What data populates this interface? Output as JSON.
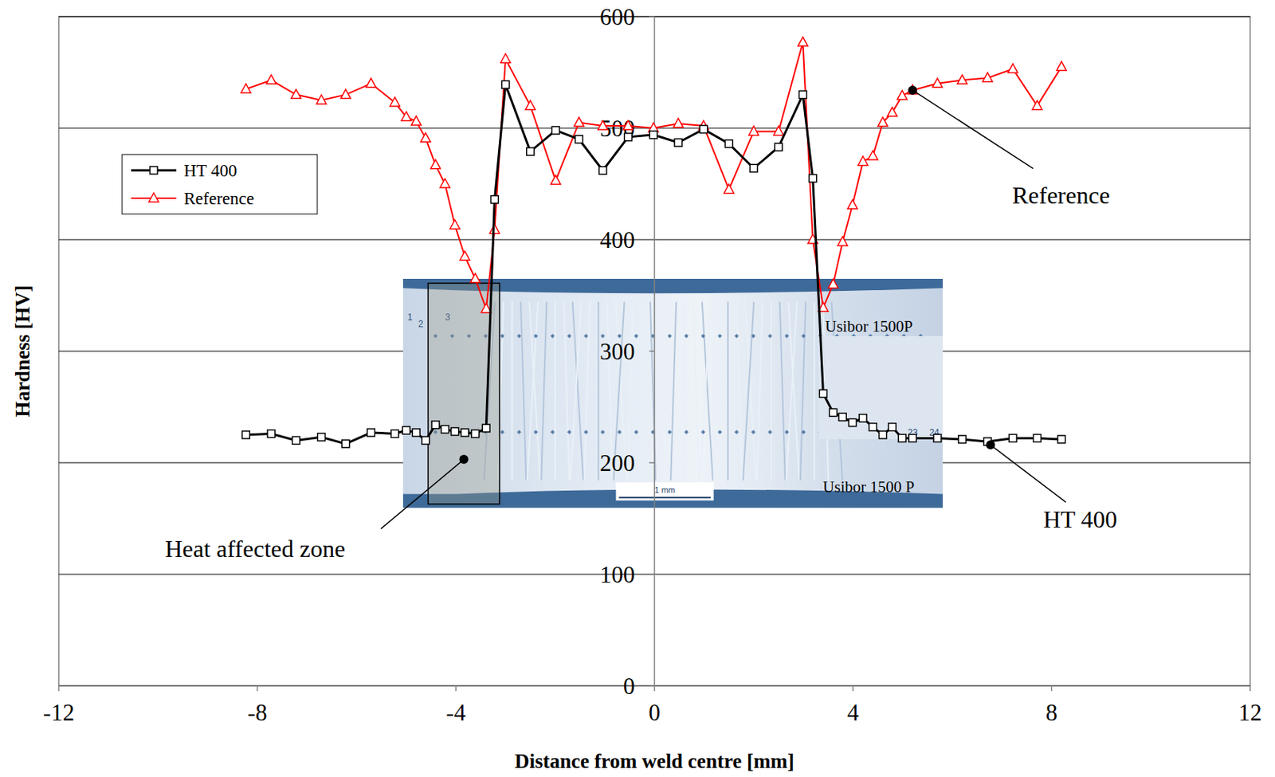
{
  "chart_data": {
    "type": "line",
    "x_label": "Distance from weld centre [mm]",
    "y_label": "Hardness [HV]",
    "xlim": [
      -12,
      12
    ],
    "ylim": [
      0,
      600
    ],
    "xticks": [
      -12,
      -8,
      -4,
      0,
      4,
      8,
      12
    ],
    "yticks": [
      0,
      100,
      200,
      300,
      400,
      500,
      600
    ],
    "grid": true,
    "legend": "upper left",
    "series": [
      {
        "name": "HT 400",
        "color": "#000000",
        "marker": "square",
        "line_style": "solid",
        "x": [
          -8.23,
          -7.72,
          -7.22,
          -6.71,
          -6.22,
          -5.71,
          -5.23,
          -5.0,
          -4.8,
          -4.61,
          -4.41,
          -4.22,
          -4.02,
          -3.82,
          -3.61,
          -3.39,
          -3.22,
          -3.0,
          -2.5,
          -1.99,
          -1.52,
          -1.04,
          -0.53,
          -0.02,
          0.48,
          0.99,
          1.5,
          2.0,
          2.5,
          2.99,
          3.19,
          3.4,
          3.6,
          3.79,
          3.99,
          4.2,
          4.4,
          4.6,
          4.79,
          4.99,
          5.2,
          5.7,
          6.2,
          6.71,
          7.22,
          7.71,
          8.2
        ],
        "values": [
          225,
          226,
          220,
          223,
          217,
          227,
          226,
          229,
          227,
          220,
          234,
          230,
          228,
          227,
          226,
          231,
          436,
          539,
          479,
          498,
          490,
          462,
          492,
          494,
          487,
          499,
          486,
          464,
          483,
          530,
          455,
          262,
          245,
          241,
          236,
          240,
          232,
          225,
          232,
          222,
          222,
          222,
          221,
          219,
          222,
          222,
          221
        ]
      },
      {
        "name": "Reference",
        "color": "#ff0000",
        "marker": "triangle",
        "line_style": "solid",
        "x": [
          -8.23,
          -7.72,
          -7.22,
          -6.71,
          -6.22,
          -5.71,
          -5.23,
          -5.0,
          -4.8,
          -4.61,
          -4.41,
          -4.22,
          -4.02,
          -3.82,
          -3.61,
          -3.39,
          -3.22,
          -3.0,
          -2.5,
          -1.99,
          -1.52,
          -1.04,
          -0.53,
          -0.02,
          0.48,
          0.99,
          1.5,
          2.0,
          2.5,
          2.99,
          3.19,
          3.4,
          3.6,
          3.79,
          3.99,
          4.2,
          4.4,
          4.6,
          4.79,
          4.99,
          5.2,
          5.7,
          6.2,
          6.71,
          7.22,
          7.71,
          8.2
        ],
        "values": [
          535,
          543,
          530,
          525,
          530,
          540,
          523,
          510,
          506,
          491,
          467,
          450,
          413,
          385,
          365,
          338,
          409,
          562,
          520,
          453,
          505,
          502,
          502,
          500,
          504,
          502,
          445,
          497,
          497,
          577,
          400,
          339,
          360,
          398,
          431,
          470,
          475,
          505,
          514,
          529,
          534,
          540,
          543,
          545,
          553,
          520,
          555
        ]
      }
    ],
    "annotations": [
      {
        "text": "Reference",
        "x": 5.2,
        "y": 534
      },
      {
        "text": "HT 400",
        "x": 6.77,
        "y": 216
      },
      {
        "text": "Heat affected zone",
        "x": -3.84,
        "y": 203,
        "region": {
          "x": [
            -4.56,
            -3.12
          ],
          "y": [
            163,
            361
          ]
        }
      }
    ],
    "micrograph": {
      "labels": [
        "Usibor 1500P",
        "Usibor 1500 P"
      ],
      "scale_bar": "1 mm",
      "point_numbers": [
        "1",
        "2",
        "3",
        "23",
        "24"
      ]
    }
  }
}
